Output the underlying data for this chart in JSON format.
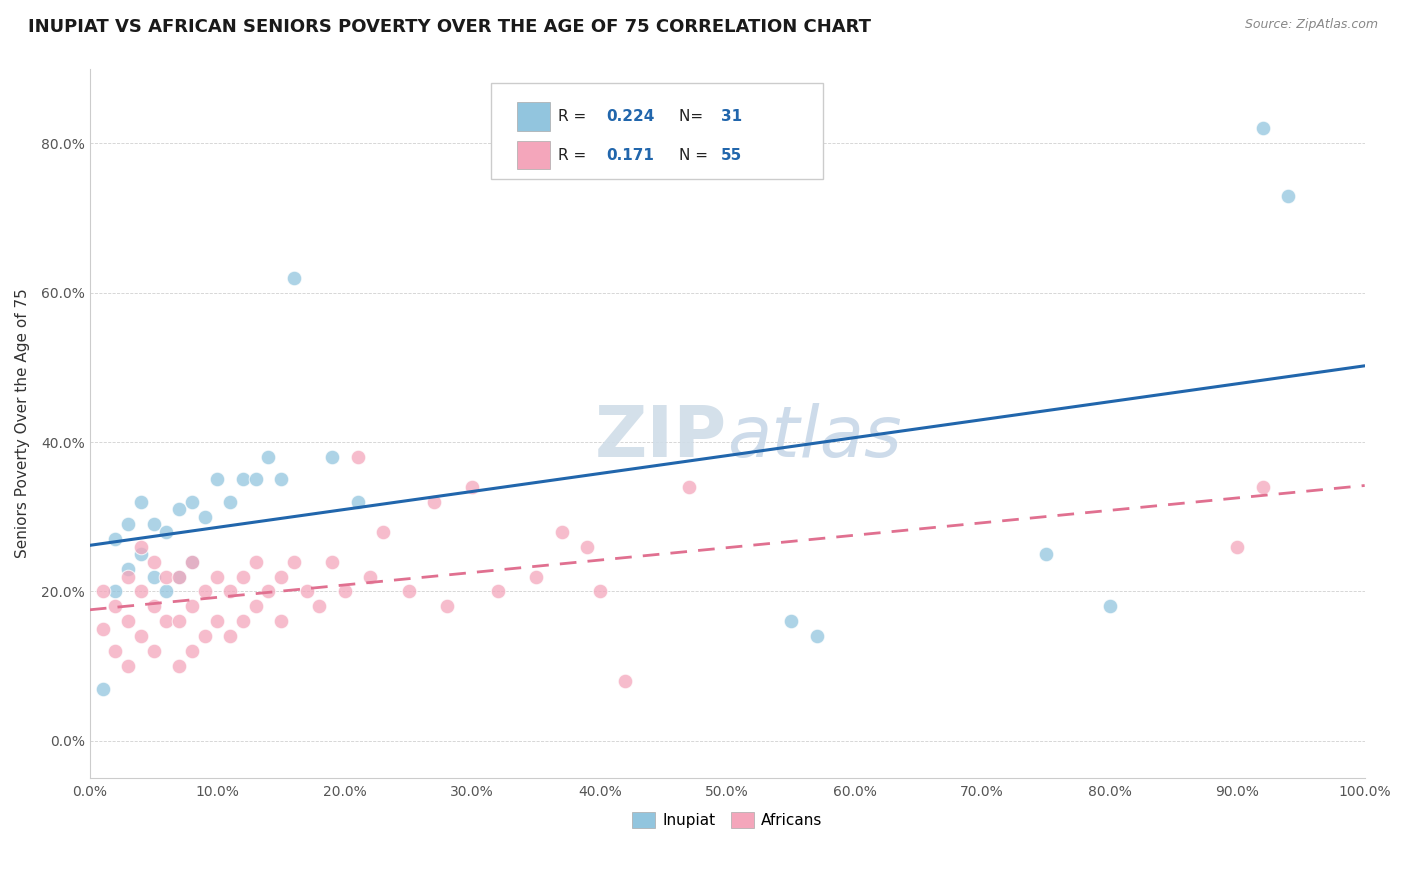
{
  "title": "INUPIAT VS AFRICAN SENIORS POVERTY OVER THE AGE OF 75 CORRELATION CHART",
  "source": "Source: ZipAtlas.com",
  "ylabel": "Seniors Poverty Over the Age of 75",
  "inupiat_R": 0.224,
  "inupiat_N": 31,
  "african_R": 0.171,
  "african_N": 55,
  "inupiat_color": "#92c5de",
  "african_color": "#f4a6bb",
  "inupiat_line_color": "#2166ac",
  "african_line_color": "#f4a6bb",
  "watermark": "ZIPatlas",
  "xlim": [
    0.0,
    1.0
  ],
  "ylim": [
    -0.05,
    0.9
  ],
  "inupiat_x": [
    0.01,
    0.02,
    0.02,
    0.03,
    0.03,
    0.04,
    0.04,
    0.05,
    0.05,
    0.06,
    0.06,
    0.07,
    0.07,
    0.08,
    0.08,
    0.09,
    0.1,
    0.11,
    0.12,
    0.13,
    0.14,
    0.15,
    0.16,
    0.19,
    0.21,
    0.55,
    0.57,
    0.75,
    0.8,
    0.92,
    0.94
  ],
  "inupiat_y": [
    0.07,
    0.2,
    0.27,
    0.23,
    0.29,
    0.25,
    0.32,
    0.22,
    0.29,
    0.2,
    0.28,
    0.22,
    0.31,
    0.24,
    0.32,
    0.3,
    0.35,
    0.32,
    0.35,
    0.35,
    0.38,
    0.35,
    0.62,
    0.38,
    0.32,
    0.16,
    0.14,
    0.25,
    0.18,
    0.82,
    0.73
  ],
  "african_x": [
    0.01,
    0.01,
    0.02,
    0.02,
    0.03,
    0.03,
    0.03,
    0.04,
    0.04,
    0.04,
    0.05,
    0.05,
    0.05,
    0.06,
    0.06,
    0.07,
    0.07,
    0.07,
    0.08,
    0.08,
    0.08,
    0.09,
    0.09,
    0.1,
    0.1,
    0.11,
    0.11,
    0.12,
    0.12,
    0.13,
    0.13,
    0.14,
    0.15,
    0.15,
    0.16,
    0.17,
    0.18,
    0.19,
    0.2,
    0.21,
    0.22,
    0.23,
    0.25,
    0.27,
    0.28,
    0.3,
    0.32,
    0.35,
    0.37,
    0.39,
    0.4,
    0.42,
    0.47,
    0.9,
    0.92
  ],
  "african_y": [
    0.15,
    0.2,
    0.12,
    0.18,
    0.1,
    0.16,
    0.22,
    0.14,
    0.2,
    0.26,
    0.12,
    0.18,
    0.24,
    0.16,
    0.22,
    0.1,
    0.16,
    0.22,
    0.12,
    0.18,
    0.24,
    0.14,
    0.2,
    0.16,
    0.22,
    0.14,
    0.2,
    0.16,
    0.22,
    0.18,
    0.24,
    0.2,
    0.16,
    0.22,
    0.24,
    0.2,
    0.18,
    0.24,
    0.2,
    0.38,
    0.22,
    0.28,
    0.2,
    0.32,
    0.18,
    0.34,
    0.2,
    0.22,
    0.28,
    0.26,
    0.2,
    0.08,
    0.34,
    0.26,
    0.34
  ]
}
